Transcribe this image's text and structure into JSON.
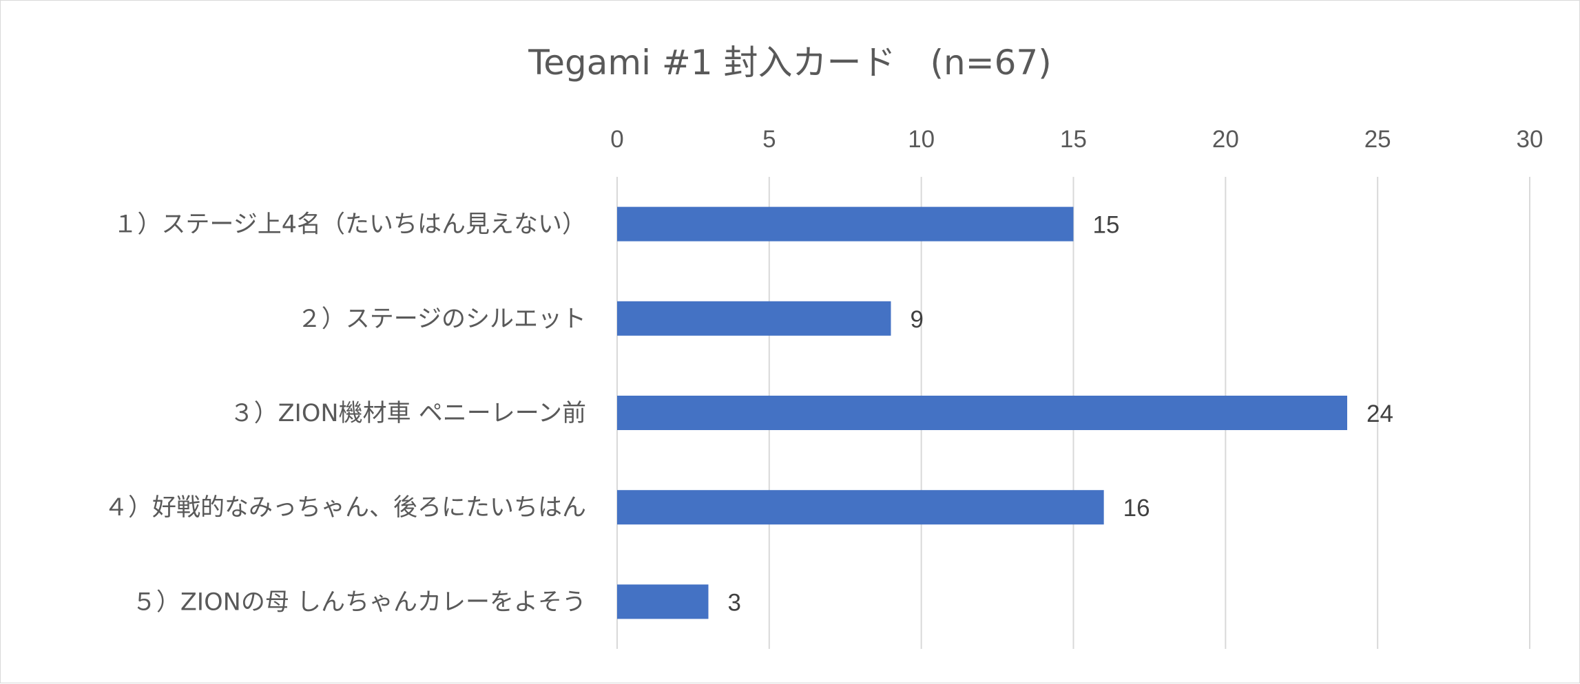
{
  "chart_data": {
    "type": "bar",
    "orientation": "horizontal",
    "title": "Tegami #1 封入カード　(n=67)",
    "categories": [
      "１）ステージ上4名（たいちはん見えない）",
      "２）ステージのシルエット",
      "３）ZION機材車 ペニーレーン前",
      "４）好戦的なみっちゃん、後ろにたいちはん",
      "５）ZIONの母 しんちゃんカレーをよそう"
    ],
    "values": [
      15,
      9,
      24,
      16,
      3
    ],
    "data_labels": [
      "15",
      "9",
      "24",
      "16",
      "3"
    ],
    "xlim": [
      0,
      30
    ],
    "x_ticks": [
      "0",
      "5",
      "10",
      "15",
      "20",
      "25",
      "30"
    ],
    "x_axis_position": "top",
    "grid": true,
    "legend": "none",
    "bar_color": "#4472c4"
  }
}
